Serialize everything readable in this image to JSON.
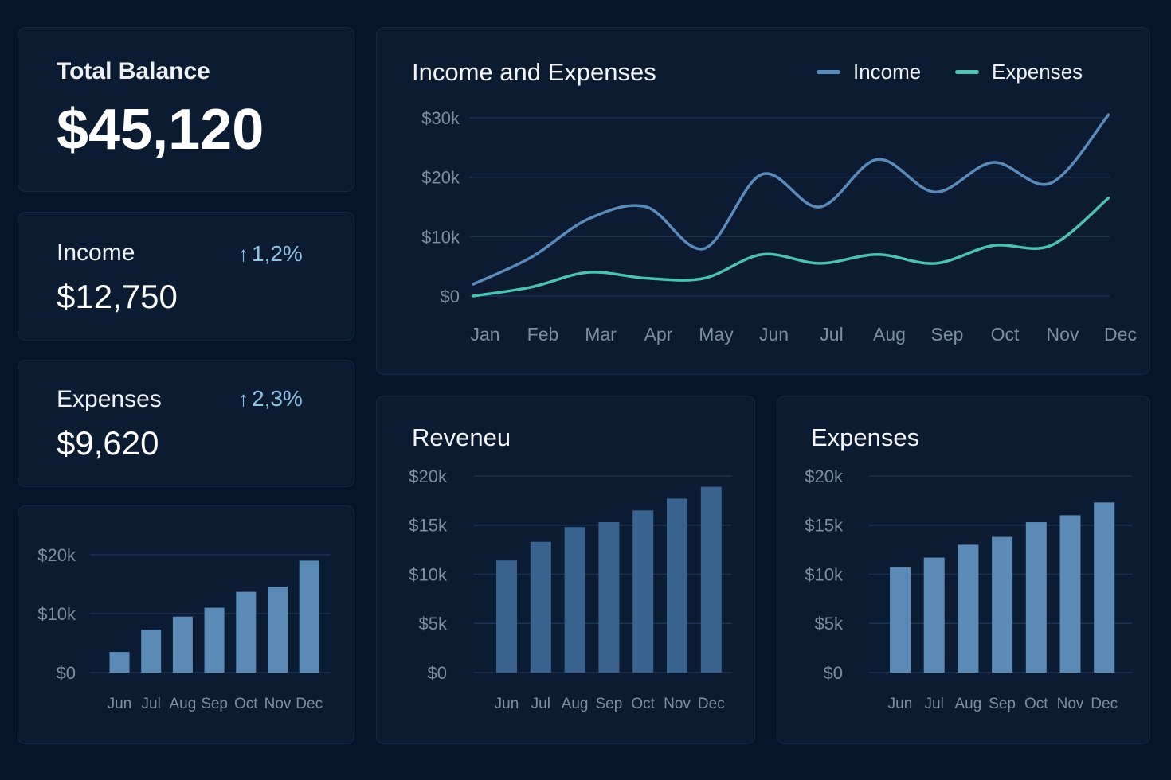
{
  "colors": {
    "background": "#06152a",
    "card": "#0b1b31",
    "income_line": "#5a8bb9",
    "expenses_line": "#4dc1b8",
    "bar_small": "#5b8ab6",
    "bar_revenue": "#3a628f",
    "bar_expenses": "#5b8ab6",
    "change_positive": "#8fc3e2"
  },
  "summary": {
    "total_balance": {
      "label": "Total Balance",
      "value": "$45,120"
    },
    "income": {
      "label": "Income",
      "value": "$12,750",
      "change": "1,2%",
      "change_icon": "arrow-up-icon"
    },
    "expenses": {
      "label": "Expenses",
      "value": "$9,620",
      "change": "2,3%",
      "change_icon": "arrow-up-icon"
    }
  },
  "chart_data": [
    {
      "id": "income_expenses",
      "type": "line",
      "title": "Income and Expenses",
      "x": [
        "Jan",
        "Feb",
        "Mar",
        "Apr",
        "May",
        "Jun",
        "Jul",
        "Aug",
        "Sep",
        "Oct",
        "Nov",
        "Dec"
      ],
      "series": [
        {
          "name": "Income",
          "color": "#5a8bb9",
          "values": [
            2000,
            6500,
            13000,
            15000,
            8000,
            20500,
            15000,
            23000,
            17500,
            22500,
            19000,
            30500
          ]
        },
        {
          "name": "Expenses",
          "color": "#4dc1b8",
          "values": [
            0,
            1500,
            4000,
            3000,
            3000,
            7000,
            5500,
            7000,
            5500,
            8500,
            8500,
            16500
          ]
        }
      ],
      "yticks": [
        "$30k",
        "$20k",
        "$10k",
        "$0"
      ],
      "ylim": [
        0,
        30000
      ],
      "grid": true,
      "legend": "top-right"
    },
    {
      "id": "small_bars",
      "type": "bar",
      "title": "",
      "categories": [
        "Jun",
        "Jul",
        "Aug",
        "Sep",
        "Oct",
        "Nov",
        "Dec"
      ],
      "values": [
        3500,
        7300,
        9500,
        11000,
        13700,
        14600,
        19000
      ],
      "yticks": [
        "$20k",
        "$10k",
        "$0"
      ],
      "ylim": [
        0,
        20000
      ],
      "color": "#5b8ab6"
    },
    {
      "id": "revenue",
      "type": "bar",
      "title": "Reveneu",
      "categories": [
        "Jun",
        "Jul",
        "Aug",
        "Sep",
        "Oct",
        "Nov",
        "Dec"
      ],
      "values": [
        11400,
        13300,
        14800,
        15300,
        16500,
        17700,
        18900
      ],
      "yticks": [
        "$20k",
        "$15k",
        "$10k",
        "$5k",
        "$0"
      ],
      "ylim": [
        0,
        20000
      ],
      "color": "#3a628f"
    },
    {
      "id": "expenses_bars",
      "type": "bar",
      "title": "Expenses",
      "categories": [
        "Jun",
        "Jul",
        "Aug",
        "Sep",
        "Oct",
        "Nov",
        "Dec"
      ],
      "values": [
        10700,
        11700,
        13000,
        13800,
        15300,
        16000,
        17300
      ],
      "yticks": [
        "$20k",
        "$15k",
        "$10k",
        "$5k",
        "$0"
      ],
      "ylim": [
        0,
        20000
      ],
      "color": "#5b8ab6"
    }
  ]
}
